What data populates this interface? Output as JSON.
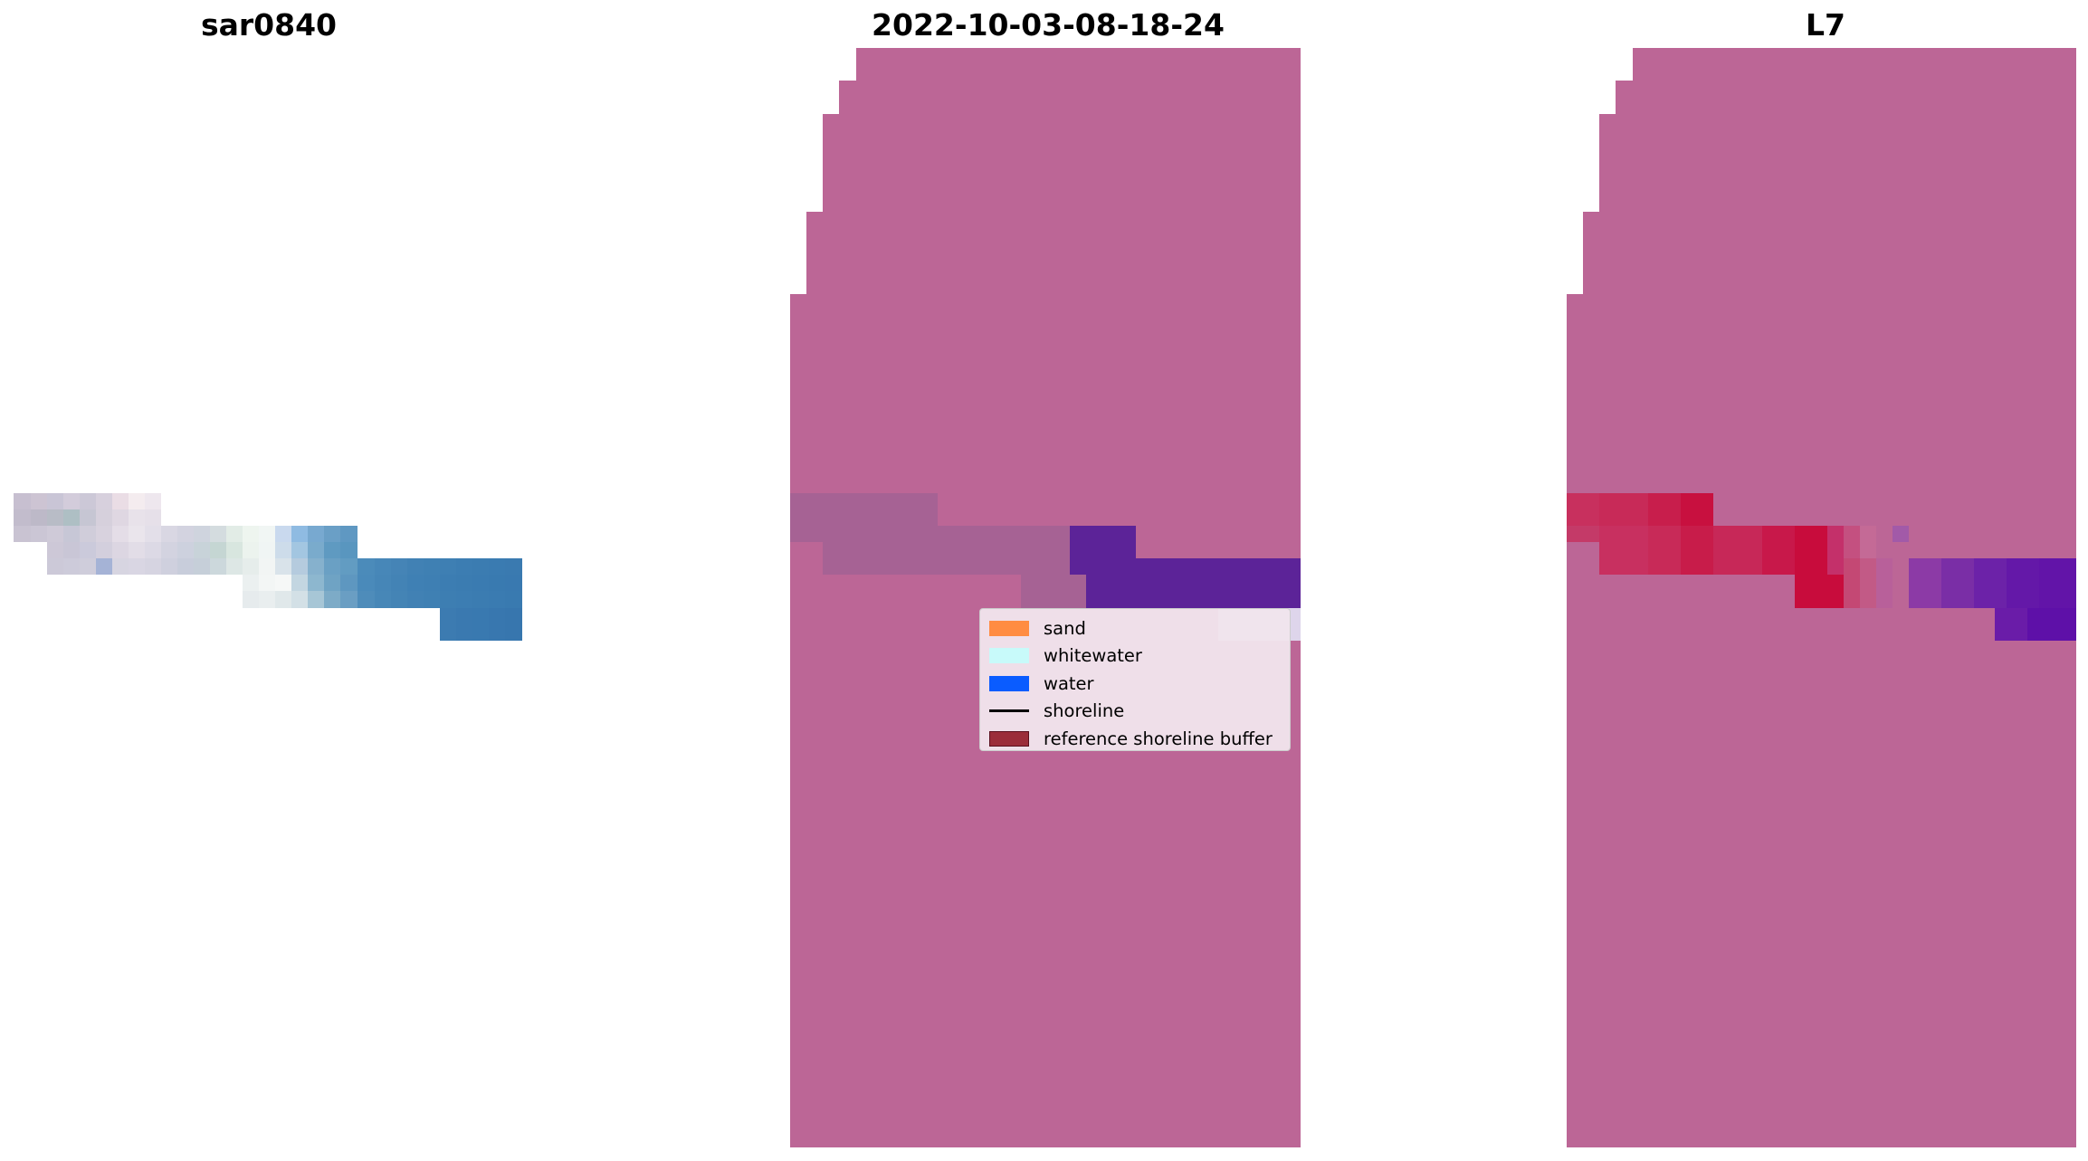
{
  "panels": [
    {
      "title": "sar0840"
    },
    {
      "title": "2022-10-03-08-18-24"
    },
    {
      "title": "L7"
    }
  ],
  "legend": {
    "items": [
      {
        "label": "sand",
        "kind": "patch",
        "color": "#ff8c42"
      },
      {
        "label": "whitewater",
        "kind": "patch",
        "color": "#c8fafa"
      },
      {
        "label": "water",
        "kind": "patch",
        "color": "#0a5cff"
      },
      {
        "label": "shoreline",
        "kind": "line",
        "color": "#000000"
      },
      {
        "label": "reference shoreline buffer",
        "kind": "patch",
        "color": "#9b2d3a"
      }
    ]
  },
  "colors": {
    "buffer_overlay": "#bc6696",
    "sand_class": "#a66294",
    "water_class": "#5c2398",
    "whitewater_class": "#ded5eb",
    "sand_overlay_l7": "#c8154a",
    "water_overlay_l7": "#5e12a8"
  }
}
